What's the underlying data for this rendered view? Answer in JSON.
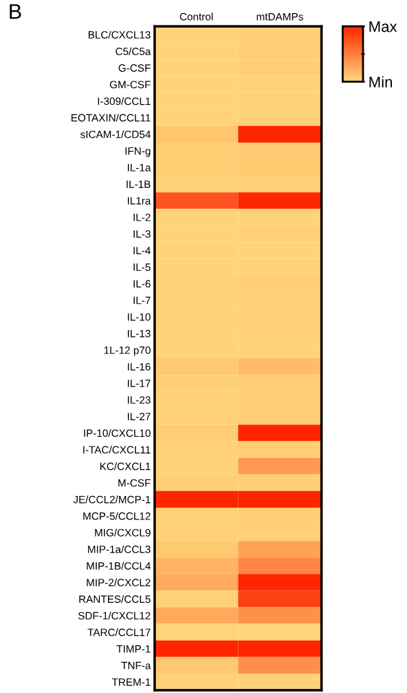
{
  "chart_data": {
    "type": "heatmap",
    "annotations": [
      "B"
    ],
    "categories": [
      "Control",
      "mtDAMPs"
    ],
    "y_categories": [
      "BLC/CXCL13",
      "C5/C5a",
      "G-CSF",
      "GM-CSF",
      "I-309/CCL1",
      "EOTAXIN/CCL11",
      "sICAM-1/CD54",
      "IFN-g",
      "IL-1a",
      "IL-1B",
      "IL1ra",
      "IL-2",
      "IL-3",
      "IL-4",
      "IL-5",
      "IL-6",
      "IL-7",
      "IL-10",
      "IL-13",
      "1L-12 p70",
      "IL-16",
      "IL-17",
      "IL-23",
      "IL-27",
      "IP-10/CXCL10",
      "I-TAC/CXCL11",
      "KC/CXCL1",
      "M-CSF",
      "JE/CCL2/MCP-1",
      "MCP-5/CCL12",
      "MIG/CXCL9",
      "MIP-1a/CCL3",
      "MIP-1B/CCL4",
      "MIP-2/CXCL2",
      "RANTES/CCL5",
      "SDF-1/CXCL12",
      "TARC/CCL17",
      "TIMP-1",
      "TNF-a",
      "TREM-1"
    ],
    "cells": [
      [
        0.02,
        0.05
      ],
      [
        0.02,
        0.06
      ],
      [
        0.02,
        0.05
      ],
      [
        0.02,
        0.03
      ],
      [
        0.02,
        0.03
      ],
      [
        0.02,
        0.04
      ],
      [
        0.1,
        1
      ],
      [
        0.05,
        0.07
      ],
      [
        0.05,
        0.08
      ],
      [
        0.03,
        0.04
      ],
      [
        0.75,
        1
      ],
      [
        0.02,
        0.02
      ],
      [
        0.02,
        0.04
      ],
      [
        0.02,
        0.02
      ],
      [
        0.02,
        0.03
      ],
      [
        0.03,
        0.05
      ],
      [
        0.03,
        0.04
      ],
      [
        0.03,
        0.04
      ],
      [
        0.02,
        0.03
      ],
      [
        0.02,
        0.02
      ],
      [
        0.08,
        0.15
      ],
      [
        0.05,
        0.06
      ],
      [
        0.03,
        0.06
      ],
      [
        0.03,
        0.06
      ],
      [
        0.06,
        1
      ],
      [
        0.03,
        0.06
      ],
      [
        0.03,
        0.35
      ],
      [
        0.05,
        0.05
      ],
      [
        1,
        1
      ],
      [
        0.03,
        0.05
      ],
      [
        0.03,
        0.04
      ],
      [
        0.08,
        0.3
      ],
      [
        0.2,
        0.45
      ],
      [
        0.25,
        1
      ],
      [
        0.03,
        0.85
      ],
      [
        0.25,
        0.4
      ],
      [
        0.02,
        0.02
      ],
      [
        1,
        1
      ],
      [
        0.08,
        0.4
      ],
      [
        0.03,
        0.03
      ]
    ],
    "colors": [
      "#ffd77a",
      "#ff2600"
    ],
    "clim": [
      0,
      1
    ],
    "cticks": [
      {
        "value": 0,
        "label": "Min"
      },
      {
        "value": 0.5,
        "label": null
      },
      {
        "value": 1,
        "label": "Max"
      }
    ]
  }
}
